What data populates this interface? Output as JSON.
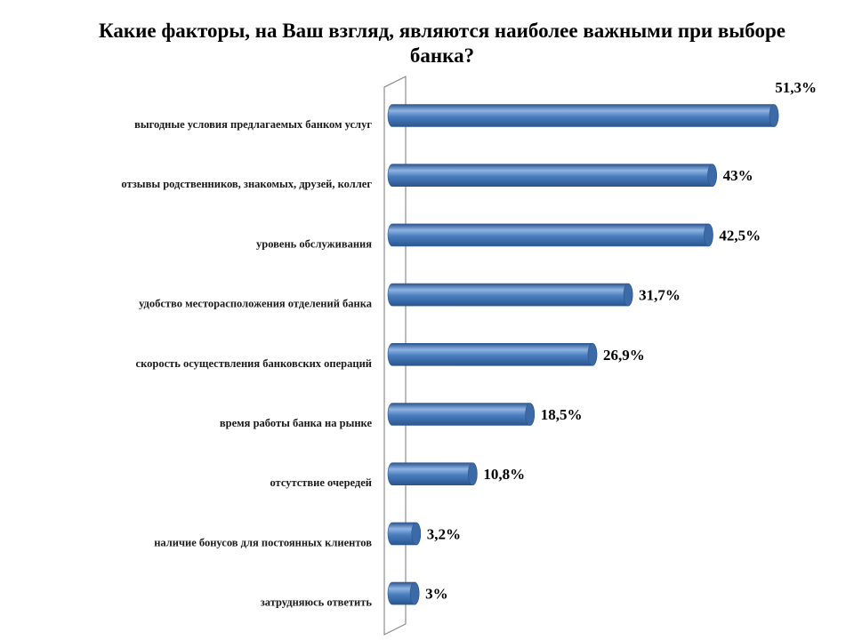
{
  "chart_data": {
    "type": "bar",
    "orientation": "horizontal",
    "title": "Какие факторы, на Ваш взгляд, являются наиболее важными при выборе банка?",
    "title_lines": [
      "Какие факторы, на Ваш взгляд, являются наиболее важными при выборе",
      "банка?"
    ],
    "categories": [
      "выгодные условия предлагаемых банком услуг",
      "отзывы родственников, знакомых, друзей, коллег",
      "уровень обслуживания",
      "удобство месторасположения отделений банка",
      "скорость осуществления банковских операций",
      "время работы банка на рынке",
      "отсутствие очередей",
      "наличие бонусов для постоянных клиентов",
      "затрудняюсь ответить"
    ],
    "values": [
      51.3,
      43,
      42.5,
      31.7,
      26.9,
      18.5,
      10.8,
      3.2,
      3
    ],
    "value_labels": [
      "51,3%",
      "43%",
      "42,5%",
      "31,7%",
      "26,9%",
      "18,5%",
      "10,8%",
      "3,2%",
      "3%"
    ],
    "xlim": [
      0,
      51.3
    ],
    "bar_style": "3d-cylinder",
    "colors": {
      "bar_main": "#4a7ebf",
      "bar_light": "#8fb4e3",
      "bar_dark": "#2a558f",
      "bar_cap": "#3b6aa6",
      "axis_wall": "#7a7a7a"
    },
    "grid": false,
    "legend": "none"
  }
}
